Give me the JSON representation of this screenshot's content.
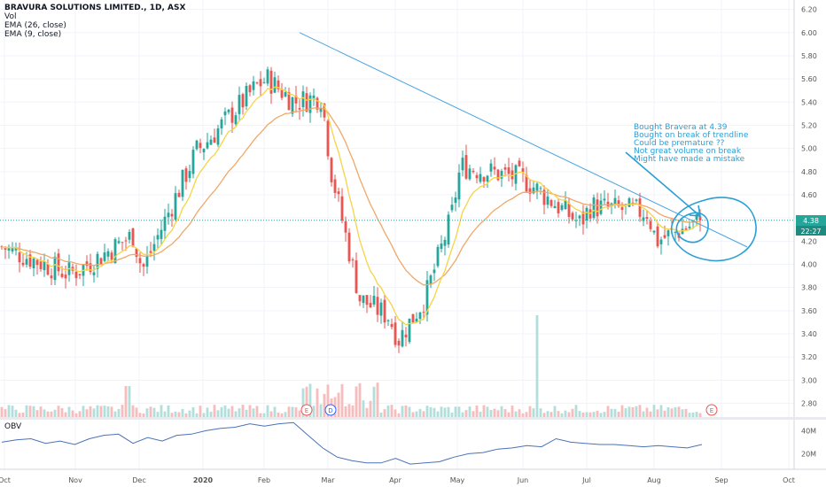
{
  "legend": {
    "title": "BRAVURA SOLUTIONS LIMITED., 1D, ASX",
    "vol": "Vol",
    "ema26": "EMA (26, close)",
    "ema9": "EMA (9, close)"
  },
  "obv_label": "OBV",
  "price_axis": {
    "ticks": [
      "6.20",
      "6.00",
      "5.80",
      "5.60",
      "5.40",
      "5.20",
      "5.00",
      "4.80",
      "4.60",
      "4.40",
      "4.20",
      "4.00",
      "3.80",
      "3.60",
      "3.40",
      "3.20",
      "3.00",
      "2.80"
    ],
    "last_price": "4.38",
    "countdown": "22:27"
  },
  "obv_axis": {
    "ticks": [
      "40M",
      "20M"
    ]
  },
  "time_axis": {
    "ticks": [
      "Oct",
      "Nov",
      "Dec",
      "2020",
      "Feb",
      "Mar",
      "Apr",
      "May",
      "Jun",
      "Jul",
      "Aug",
      "Sep",
      "Oct"
    ]
  },
  "events": [
    "E",
    "D",
    "E"
  ],
  "annotation": [
    "Bought Bravera at 4.39",
    "Bought on break of trendline",
    "Could be premature ??",
    "Not great volume on break",
    "Might have made a mistake"
  ],
  "colors": {
    "up": "#26a69a",
    "down": "#ef5350",
    "ema26": "#f0a868",
    "ema9": "#f5d445",
    "trendline": "#4aa3df",
    "obv": "#4a72b8",
    "annotation": "#2a9fd6",
    "last_price_bg": "#26a69a"
  },
  "chart_data": [
    {
      "type": "candlestick",
      "title": "BRAVURA SOLUTIONS LIMITED., 1D, ASX",
      "ylim": [
        2.72,
        6.22
      ],
      "x_ticks": [
        "Oct",
        "Nov",
        "Dec",
        "2020",
        "Feb",
        "Mar",
        "Apr",
        "May",
        "Jun",
        "Jul",
        "Aug",
        "Sep",
        "Oct"
      ],
      "close_anchors": [
        [
          "Oct",
          4.15
        ],
        [
          "Oct",
          3.92
        ],
        [
          "Nov",
          3.95
        ],
        [
          "Nov",
          4.25
        ],
        [
          "Dec",
          3.95
        ],
        [
          "Dec",
          4.98
        ],
        [
          "2020",
          5.05
        ],
        [
          "2020",
          5.55
        ],
        [
          "Feb",
          5.6
        ],
        [
          "Feb",
          5.4
        ],
        [
          "Feb",
          5.45
        ],
        [
          "Mar",
          4.8
        ],
        [
          "Mar",
          3.7
        ],
        [
          "Mar",
          3.55
        ],
        [
          "Apr",
          3.35
        ],
        [
          "Apr",
          3.7
        ],
        [
          "Apr",
          4.4
        ],
        [
          "May",
          4.85
        ],
        [
          "May",
          4.75
        ],
        [
          "Jun",
          4.72
        ],
        [
          "Jun",
          4.35
        ],
        [
          "Jul",
          4.5
        ],
        [
          "Jul",
          4.45
        ],
        [
          "Aug",
          4.2
        ],
        [
          "Aug",
          4.38
        ]
      ],
      "series": [
        {
          "name": "EMA (26, close)"
        },
        {
          "name": "EMA (9, close)"
        }
      ],
      "last_price": 4.38,
      "trendline": {
        "from": [
          "Feb",
          6.0
        ],
        "to": [
          "Sep",
          4.15
        ]
      }
    },
    {
      "type": "bar",
      "title": "Vol"
    },
    {
      "type": "line",
      "title": "OBV",
      "y_ticks": [
        "40M",
        "20M"
      ],
      "values_M": [
        30,
        32,
        33,
        29,
        31,
        28,
        33,
        36,
        37,
        29,
        34,
        31,
        36,
        37,
        40,
        42,
        43,
        46,
        44,
        46,
        47,
        36,
        25,
        17,
        14,
        12,
        12,
        16,
        11,
        12,
        13,
        17,
        20,
        21,
        24,
        25,
        27,
        26,
        33,
        30,
        29,
        28,
        28,
        27,
        26,
        27,
        26,
        25,
        28
      ]
    }
  ]
}
